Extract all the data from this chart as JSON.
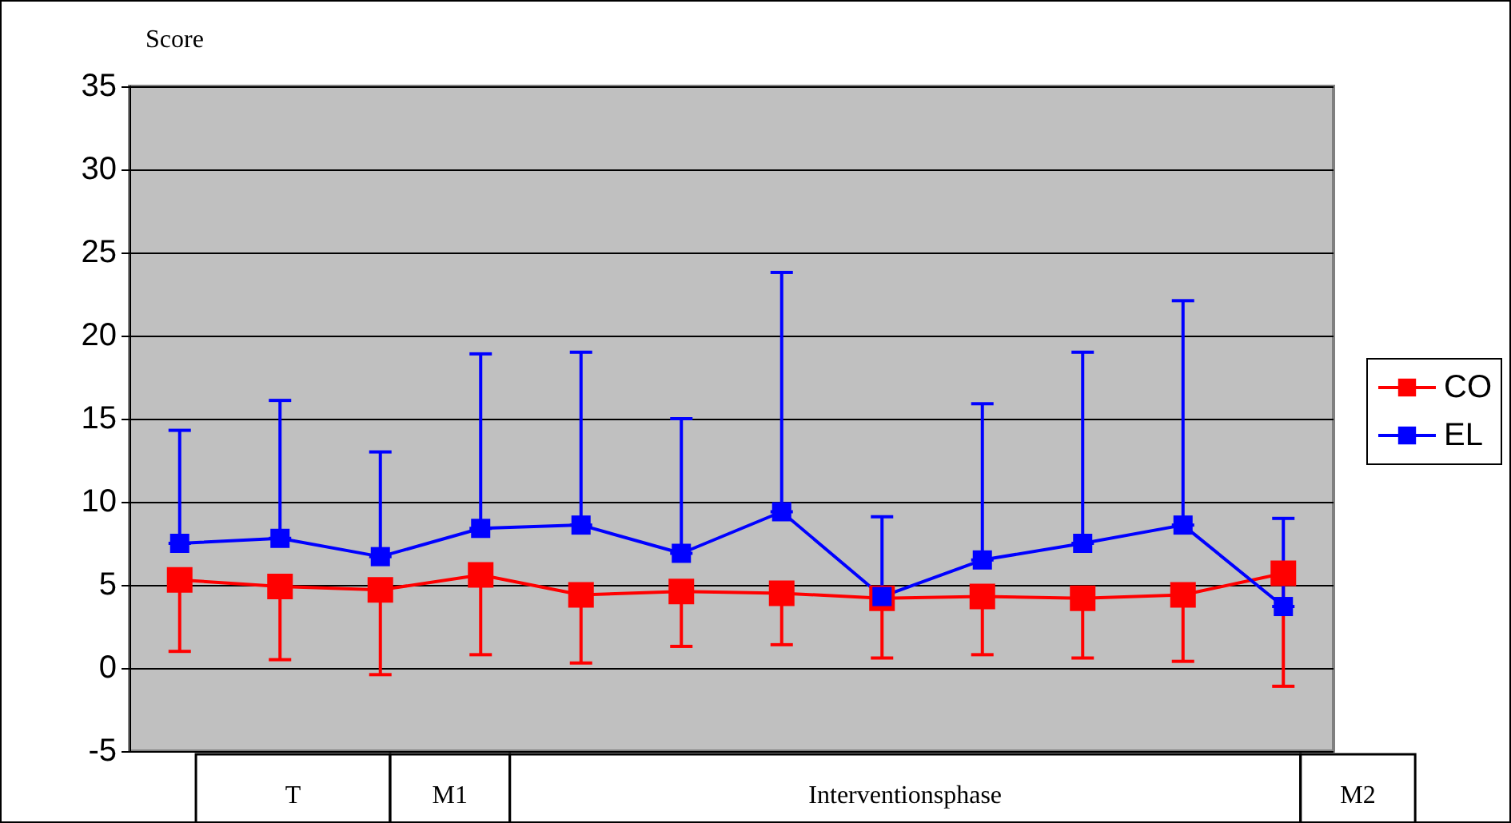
{
  "chart_data": {
    "type": "line",
    "ylabel": "Score",
    "categories": [
      null,
      null,
      null,
      null,
      null,
      null,
      null,
      null,
      null,
      null,
      null,
      null
    ],
    "series": [
      {
        "name": "CO",
        "color": "#ff0000",
        "values": [
          5.3,
          4.9,
          4.7,
          5.6,
          4.4,
          4.6,
          4.5,
          4.2,
          4.3,
          4.2,
          4.4,
          5.7
        ],
        "errors": [
          [
            1.0,
            5.3
          ],
          [
            0.5,
            4.9
          ],
          [
            -0.4,
            4.7
          ],
          [
            0.8,
            5.6
          ],
          [
            0.3,
            4.4
          ],
          [
            1.3,
            4.6
          ],
          [
            1.4,
            4.5
          ],
          [
            0.6,
            4.2
          ],
          [
            0.8,
            4.3
          ],
          [
            0.6,
            4.2
          ],
          [
            0.4,
            4.4
          ],
          [
            -1.1,
            5.7
          ]
        ]
      },
      {
        "name": "EL",
        "color": "#0000ff",
        "values": [
          7.5,
          7.8,
          6.7,
          8.4,
          8.6,
          6.9,
          9.4,
          4.3,
          6.5,
          7.5,
          8.6,
          3.7
        ],
        "errors": [
          [
            7.5,
            14.3
          ],
          [
            7.8,
            16.1
          ],
          [
            6.7,
            13.0
          ],
          [
            8.4,
            18.9
          ],
          [
            8.6,
            19.0
          ],
          [
            6.9,
            15.0
          ],
          [
            9.4,
            23.8
          ],
          [
            4.3,
            9.1
          ],
          [
            6.5,
            15.9
          ],
          [
            7.5,
            19.0
          ],
          [
            8.6,
            22.1
          ],
          [
            3.7,
            9.0
          ]
        ]
      }
    ],
    "ylim": [
      -5,
      35
    ],
    "yticks": [
      -5,
      0,
      5,
      10,
      15,
      20,
      25,
      30,
      35
    ],
    "grid": "y",
    "legend": "right",
    "marker": "square",
    "line_style": "solid",
    "annotations": [
      "T",
      "M1",
      "Interventionsphase",
      "M2"
    ]
  }
}
